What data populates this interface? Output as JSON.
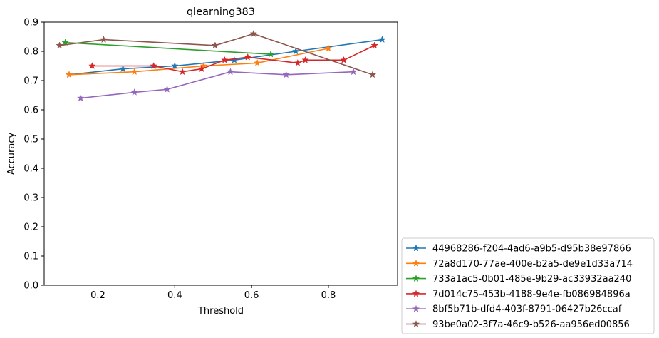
{
  "chart_data": {
    "type": "line",
    "title": "qlearning383",
    "xlabel": "Threshold",
    "ylabel": "Accuracy",
    "xlim": [
      0.06,
      0.98
    ],
    "ylim": [
      0.0,
      0.9
    ],
    "xticks": [
      0.2,
      0.4,
      0.6,
      0.8
    ],
    "xtick_labels": [
      "0.2",
      "0.4",
      "0.6",
      "0.8"
    ],
    "yticks": [
      0.0,
      0.1,
      0.2,
      0.3,
      0.4,
      0.5,
      0.6,
      0.7,
      0.8,
      0.9
    ],
    "ytick_labels": [
      "0.0",
      "0.1",
      "0.2",
      "0.3",
      "0.4",
      "0.5",
      "0.6",
      "0.7",
      "0.8",
      "0.9"
    ],
    "grid": false,
    "marker": "star",
    "legend_position": "lower right outside",
    "series": [
      {
        "name": "44968286-f204-4ad6-a9b5-d95b38e97866",
        "color": "#1f77b4",
        "x": [
          0.125,
          0.265,
          0.4,
          0.555,
          0.715,
          0.94
        ],
        "y": [
          0.72,
          0.74,
          0.75,
          0.77,
          0.8,
          0.84
        ]
      },
      {
        "name": "72a8d170-77ae-400e-b2a5-de9e1d33a714",
        "color": "#ff7f0e",
        "x": [
          0.125,
          0.295,
          0.475,
          0.615,
          0.8
        ],
        "y": [
          0.72,
          0.73,
          0.75,
          0.76,
          0.81
        ]
      },
      {
        "name": "733a1ac5-0b01-485e-9b29-ac33932aa240",
        "color": "#2ca02c",
        "x": [
          0.115,
          0.65
        ],
        "y": [
          0.83,
          0.79
        ]
      },
      {
        "name": "7d014c75-453b-4188-9e4e-fb086984896a",
        "color": "#d62728",
        "x": [
          0.185,
          0.345,
          0.42,
          0.47,
          0.53,
          0.59,
          0.72,
          0.74,
          0.84,
          0.92
        ],
        "y": [
          0.75,
          0.75,
          0.73,
          0.74,
          0.77,
          0.78,
          0.76,
          0.77,
          0.77,
          0.82
        ]
      },
      {
        "name": "8bf5b71b-dfd4-403f-8791-06427b26ccaf",
        "color": "#9467bd",
        "x": [
          0.155,
          0.295,
          0.38,
          0.545,
          0.69,
          0.865
        ],
        "y": [
          0.64,
          0.66,
          0.67,
          0.73,
          0.72,
          0.73
        ]
      },
      {
        "name": "93be0a02-3f7a-46c9-b526-aa956ed00856",
        "color": "#8c564b",
        "x": [
          0.1,
          0.215,
          0.505,
          0.605,
          0.915
        ],
        "y": [
          0.82,
          0.84,
          0.82,
          0.86,
          0.72
        ]
      }
    ]
  }
}
